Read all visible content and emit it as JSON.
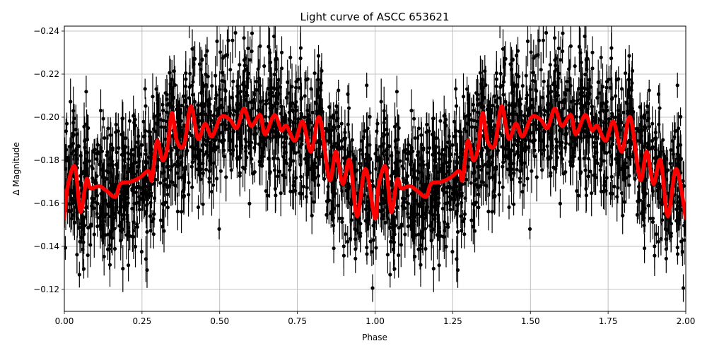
{
  "chart_data": {
    "type": "scatter",
    "title": "Light curve of ASCC 653621",
    "xlabel": "Phase",
    "ylabel": "Δ Magnitude",
    "xlim": [
      0.0,
      2.0
    ],
    "ylim": [
      -0.1098,
      -0.2423
    ],
    "y_inverted": true,
    "grid": true,
    "legend": null,
    "xticks": [
      "0.00",
      "0.25",
      "0.50",
      "0.75",
      "1.00",
      "1.25",
      "1.50",
      "1.75",
      "2.00"
    ],
    "xtick_values": [
      0.0,
      0.25,
      0.5,
      0.75,
      1.0,
      1.25,
      1.5,
      1.75,
      2.0
    ],
    "yticks": [
      "−0.24",
      "−0.22",
      "−0.20",
      "−0.18",
      "−0.16",
      "−0.14",
      "−0.12"
    ],
    "ytick_values": [
      -0.24,
      -0.22,
      -0.2,
      -0.18,
      -0.16,
      -0.14,
      -0.12
    ],
    "series": [
      {
        "name": "observations",
        "style": "black points with vertical error bars",
        "color": "#000000",
        "description": "Dense phase-folded photometry spanning roughly -0.11 to -0.24 mag across all phases, duplicated for phase 1-2"
      },
      {
        "name": "smoothed model",
        "style": "thick red line",
        "color": "#ff0000",
        "phase": [
          0.0,
          0.011,
          0.034,
          0.052,
          0.071,
          0.084,
          0.112,
          0.134,
          0.164,
          0.18,
          0.214,
          0.243,
          0.271,
          0.282,
          0.298,
          0.316,
          0.332,
          0.346,
          0.362,
          0.385,
          0.407,
          0.43,
          0.453,
          0.475,
          0.503,
          0.532,
          0.555,
          0.578,
          0.601,
          0.63,
          0.646,
          0.676,
          0.698,
          0.715,
          0.742,
          0.767,
          0.794,
          0.821,
          0.853,
          0.874,
          0.896,
          0.919,
          0.942,
          0.969,
          1.0
        ],
        "values": [
          -0.153,
          -0.168,
          -0.177,
          -0.156,
          -0.171,
          -0.167,
          -0.168,
          -0.166,
          -0.163,
          -0.169,
          -0.17,
          -0.172,
          -0.175,
          -0.171,
          -0.189,
          -0.18,
          -0.186,
          -0.202,
          -0.189,
          -0.187,
          -0.205,
          -0.19,
          -0.197,
          -0.191,
          -0.2,
          -0.199,
          -0.195,
          -0.204,
          -0.196,
          -0.201,
          -0.192,
          -0.201,
          -0.194,
          -0.196,
          -0.189,
          -0.198,
          -0.184,
          -0.2,
          -0.171,
          -0.184,
          -0.169,
          -0.18,
          -0.154,
          -0.176,
          -0.153
        ],
        "repeats_for_phase_1_to_2": true
      }
    ]
  }
}
